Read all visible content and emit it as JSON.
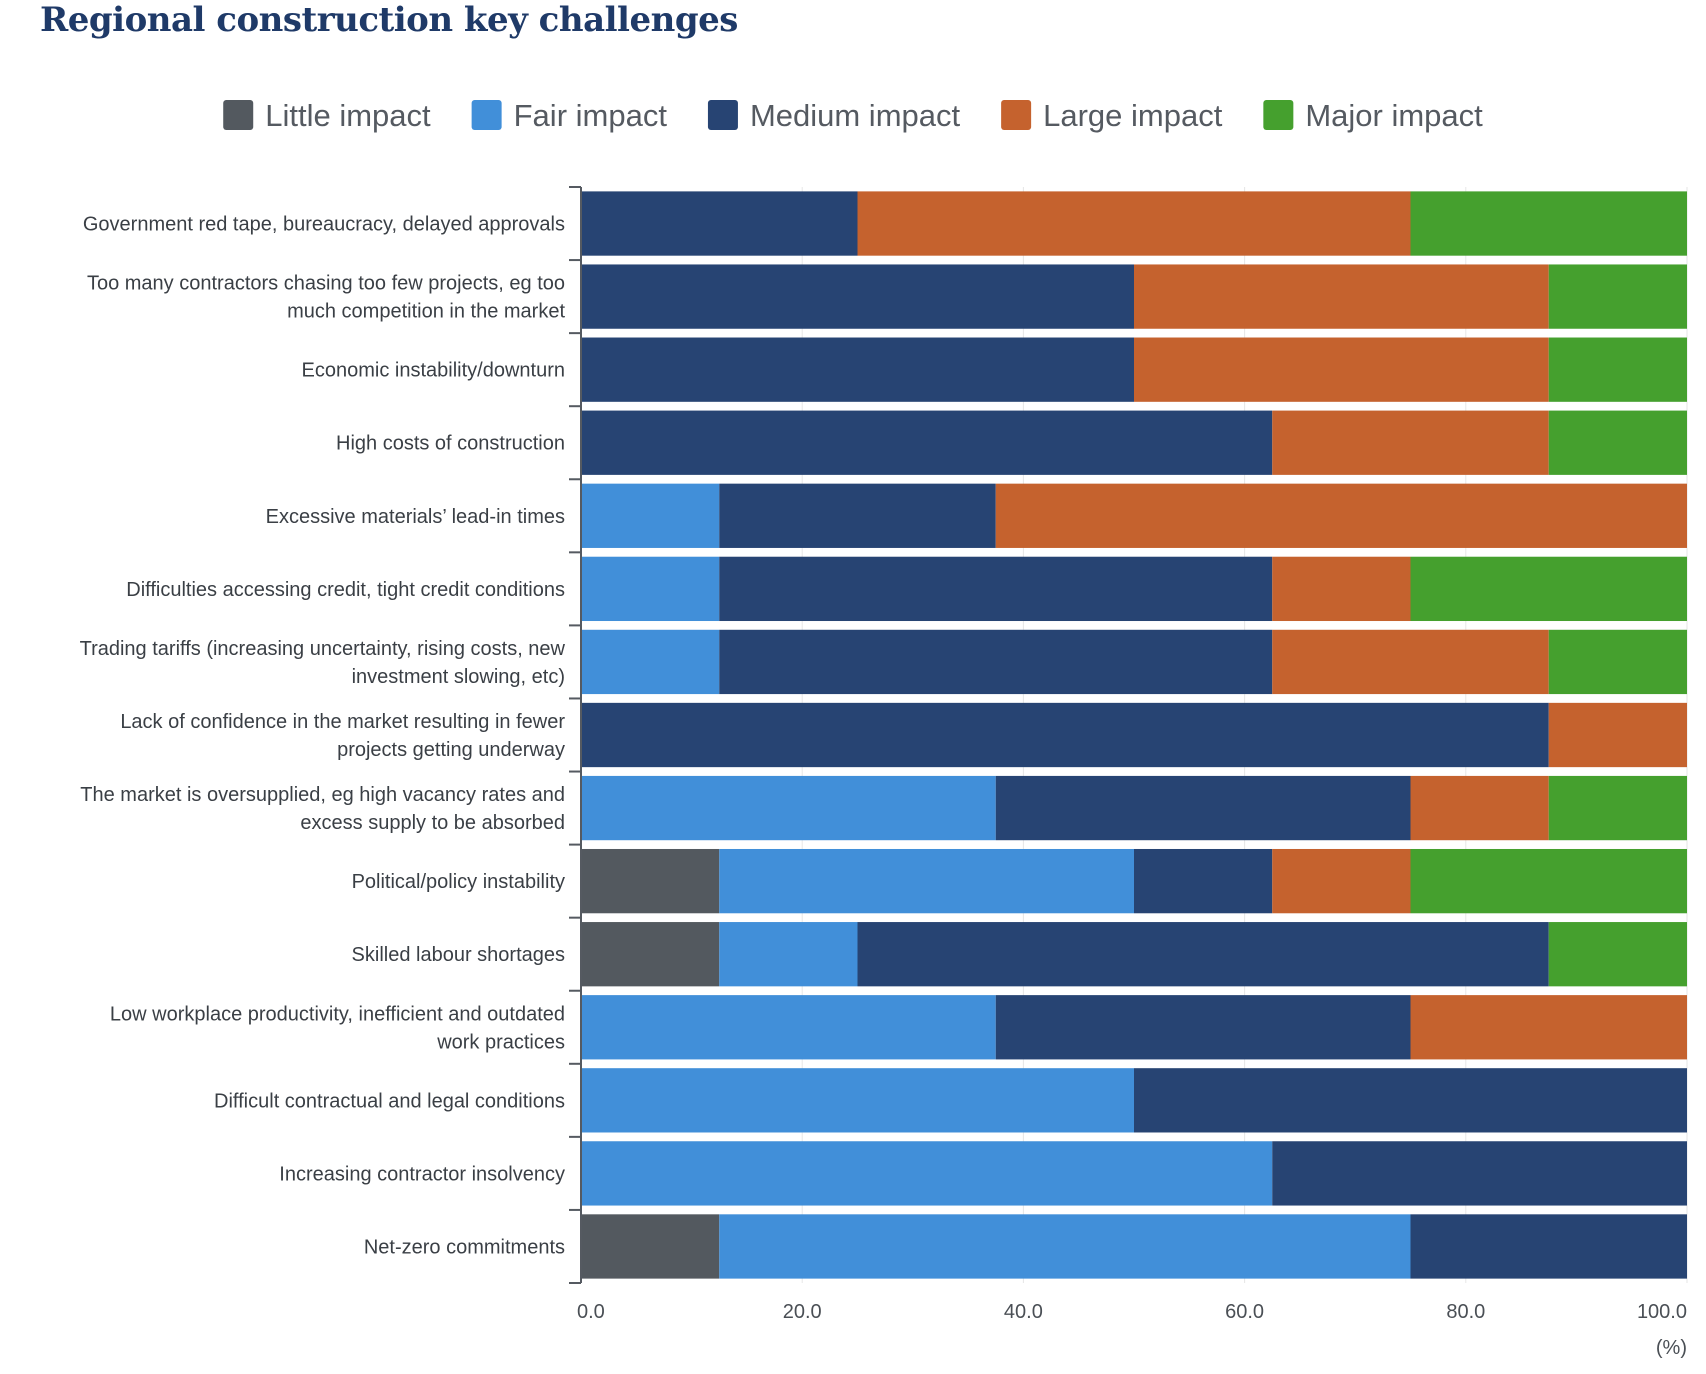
{
  "colors": {
    "Little impact": "#53595f",
    "Fair impact": "#418fd9",
    "Medium impact": "#274473",
    "Large impact": "#c5622e",
    "Major impact": "#45a02e",
    "grid": "#e6e6e6",
    "axis": "#555a61"
  },
  "chart_data": {
    "type": "bar",
    "orientation": "horizontal",
    "stacked": true,
    "title": "Regional construction key challenges",
    "xlabel": "(%)",
    "xlim": [
      0,
      100
    ],
    "xticks": [
      "0.0",
      "20.0",
      "40.0",
      "60.0",
      "80.0",
      "100.0"
    ],
    "legend": [
      "Little impact",
      "Fair impact",
      "Medium impact",
      "Large impact",
      "Major impact"
    ],
    "legend_position": "top",
    "categories": [
      "Government red tape, bureaucracy, delayed approvals",
      "Too many contractors chasing too few projects, eg too much competition in the market",
      "Economic instability/downturn",
      "High costs of construction",
      "Excessive materials’ lead-in times",
      "Difficulties accessing credit, tight credit conditions",
      "Trading tariffs (increasing uncertainty, rising costs, new investment slowing, etc)",
      "Lack of confidence in the market resulting in fewer projects getting underway",
      "The market is oversupplied, eg high vacancy rates and excess supply to be absorbed",
      "Political/policy instability",
      "Skilled labour shortages",
      "Low workplace productivity, inefficient and outdated work practices",
      "Difficult contractual and legal conditions",
      "Increasing contractor insolvency",
      "Net-zero commitments"
    ],
    "category_lines": [
      [
        "Government red tape, bureaucracy, delayed approvals"
      ],
      [
        "Too many contractors chasing too few projects, eg too",
        "much competition in the market"
      ],
      [
        "Economic instability/downturn"
      ],
      [
        "High costs of construction"
      ],
      [
        "Excessive materials’ lead-in times"
      ],
      [
        "Difficulties accessing credit, tight credit conditions"
      ],
      [
        "Trading tariffs (increasing uncertainty, rising costs, new",
        "investment slowing, etc)"
      ],
      [
        "Lack of confidence in the market resulting in fewer",
        "projects getting underway"
      ],
      [
        "The market is oversupplied, eg high vacancy rates and",
        "excess supply to be absorbed"
      ],
      [
        "Political/policy instability"
      ],
      [
        "Skilled labour shortages"
      ],
      [
        "Low workplace productivity, inefficient and outdated",
        "work practices"
      ],
      [
        "Difficult contractual and legal conditions"
      ],
      [
        "Increasing contractor insolvency"
      ],
      [
        "Net-zero commitments"
      ]
    ],
    "series": [
      {
        "name": "Little impact",
        "values": [
          0,
          0,
          0,
          0,
          0,
          0,
          0,
          0,
          0,
          12.5,
          12.5,
          0,
          0,
          0,
          12.5
        ]
      },
      {
        "name": "Fair impact",
        "values": [
          0,
          0,
          0,
          0,
          12.5,
          12.5,
          12.5,
          0,
          37.5,
          37.5,
          12.5,
          37.5,
          50,
          62.5,
          62.5
        ]
      },
      {
        "name": "Medium impact",
        "values": [
          25,
          50,
          50,
          62.5,
          25,
          50,
          50,
          87.5,
          37.5,
          12.5,
          62.5,
          37.5,
          50,
          37.5,
          25
        ]
      },
      {
        "name": "Large impact",
        "values": [
          50,
          37.5,
          37.5,
          25,
          62.5,
          12.5,
          25,
          12.5,
          12.5,
          12.5,
          0,
          25,
          0,
          0,
          0
        ]
      },
      {
        "name": "Major impact",
        "values": [
          25,
          12.5,
          12.5,
          12.5,
          0,
          25,
          12.5,
          0,
          12.5,
          25,
          12.5,
          0,
          0,
          0,
          0
        ]
      }
    ]
  }
}
